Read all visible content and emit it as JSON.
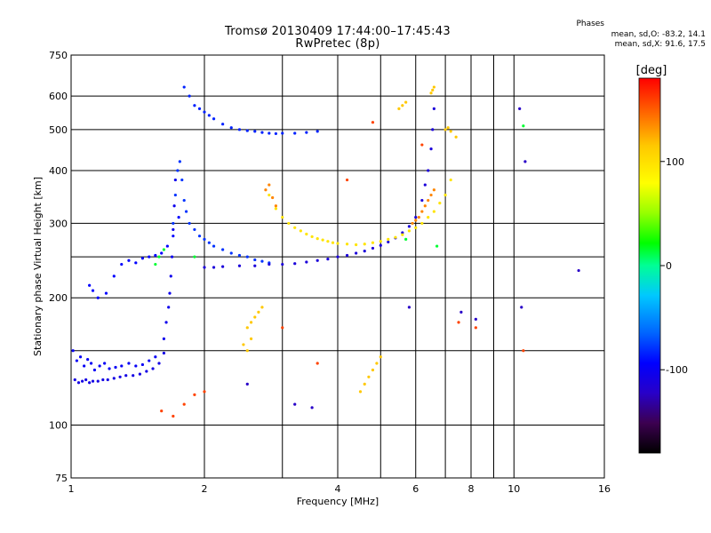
{
  "header": {
    "title_line1": "Tromsø 20130409 17:44:00–17:45:43",
    "title_line2": "RwPretec (8p)",
    "stats_title": "Phases",
    "stats_line1": "mean, sd,O: -83.2, 14.1",
    "stats_line2": "mean, sd,X:  91.6, 17.5"
  },
  "chart_data": {
    "type": "scatter",
    "title": "Tromsø 20130409 17:44:00–17:45:43",
    "subtitle": "RwPretec (8p)",
    "xlabel": "Frequency [MHz]",
    "ylabel": "Stationary phase Virtual Height [km]",
    "x_scale": "log",
    "y_scale": "log",
    "xlim": [
      1,
      16
    ],
    "ylim": [
      75,
      750
    ],
    "x_ticks": [
      1,
      2,
      4,
      6,
      8,
      10,
      16
    ],
    "x_tick_labels": [
      "1",
      "2",
      "4",
      "6",
      "8",
      "10",
      "16"
    ],
    "x_minor_ticks": [
      3,
      5,
      7,
      9
    ],
    "y_ticks": [
      75,
      100,
      200,
      300,
      400,
      500,
      600,
      750
    ],
    "y_tick_labels": [
      "75",
      "100",
      "200",
      "300",
      "400",
      "500",
      "600",
      "750"
    ],
    "y_minor_ticks": [
      150,
      250
    ],
    "grid": true,
    "colorbar": {
      "label": "[deg]",
      "range": [
        -180,
        180
      ],
      "ticks": [
        100,
        0,
        -100
      ],
      "tick_labels": [
        "100",
        "0",
        "-100"
      ],
      "colors": [
        "#000000",
        "#3c0050",
        "#2800c8",
        "#0000ff",
        "#0064ff",
        "#00c8ff",
        "#00ff96",
        "#00ff00",
        "#96ff00",
        "#ffff00",
        "#ffc800",
        "#ff6400",
        "#ff0000"
      ]
    },
    "series": [
      {
        "phase_deg": -105,
        "x": [
          1.02,
          1.04,
          1.06,
          1.08,
          1.1,
          1.12,
          1.15,
          1.18,
          1.21,
          1.25,
          1.29,
          1.33,
          1.38,
          1.43,
          1.48,
          1.53,
          1.58,
          1.62
        ],
        "y": [
          128,
          126,
          127,
          128,
          126,
          127,
          127,
          128,
          128,
          129,
          130,
          131,
          131,
          132,
          134,
          136,
          140,
          148
        ]
      },
      {
        "phase_deg": -95,
        "x": [
          1.01,
          1.03,
          1.05,
          1.07,
          1.09,
          1.11,
          1.13,
          1.16,
          1.19,
          1.22,
          1.26,
          1.3,
          1.35,
          1.4,
          1.45,
          1.5,
          1.55
        ],
        "y": [
          150,
          142,
          145,
          138,
          143,
          140,
          135,
          138,
          140,
          136,
          137,
          138,
          140,
          138,
          139,
          142,
          145
        ]
      },
      {
        "phase_deg": -100,
        "x": [
          1.62,
          1.64,
          1.66,
          1.67,
          1.68,
          1.69,
          1.7,
          1.71,
          1.72
        ],
        "y": [
          160,
          175,
          190,
          205,
          225,
          250,
          290,
          330,
          380
        ]
      },
      {
        "phase_deg": -75,
        "x": [
          1.7,
          1.72,
          1.74,
          1.76,
          1.78,
          1.8,
          1.82,
          1.85,
          1.9,
          1.95,
          2.0,
          2.05,
          2.1,
          2.2,
          2.3,
          2.4,
          2.5,
          2.6,
          2.7,
          2.8
        ],
        "y": [
          300,
          350,
          400,
          420,
          380,
          340,
          320,
          300,
          290,
          280,
          275,
          270,
          265,
          260,
          255,
          252,
          250,
          246,
          244,
          242
        ]
      },
      {
        "phase_deg": -90,
        "x": [
          1.1,
          1.12,
          1.15,
          1.2,
          1.25,
          1.3,
          1.35,
          1.4,
          1.45,
          1.5,
          1.55,
          1.6,
          1.65,
          1.7,
          1.75
        ],
        "y": [
          214,
          208,
          200,
          205,
          225,
          240,
          245,
          242,
          248,
          250,
          252,
          255,
          265,
          280,
          310
        ]
      },
      {
        "phase_deg": -110,
        "x": [
          2.0,
          2.1,
          2.2,
          2.4,
          2.6,
          2.8,
          3.0,
          3.2,
          3.4,
          3.6,
          3.8,
          4.0,
          4.2,
          4.4,
          4.6,
          4.8,
          5.0,
          5.2,
          5.4,
          5.6,
          5.8,
          6.0,
          6.2,
          6.3,
          6.4,
          6.5,
          6.55,
          6.6
        ],
        "y": [
          236,
          236,
          237,
          238,
          238,
          240,
          240,
          241,
          243,
          245,
          247,
          250,
          252,
          255,
          258,
          262,
          266,
          271,
          277,
          285,
          295,
          310,
          340,
          370,
          400,
          450,
          500,
          560
        ]
      },
      {
        "phase_deg": -80,
        "x": [
          1.8,
          1.85,
          1.9,
          1.95,
          2.0,
          2.05,
          2.1,
          2.2,
          2.3,
          2.4,
          2.5,
          2.6,
          2.7,
          2.8,
          2.9,
          3.0,
          3.2,
          3.4,
          3.6
        ],
        "y": [
          630,
          600,
          570,
          560,
          550,
          540,
          530,
          515,
          505,
          500,
          497,
          495,
          492,
          490,
          489,
          490,
          490,
          492,
          495
        ]
      },
      {
        "phase_deg": 105,
        "x": [
          2.8,
          2.9,
          3.0,
          3.1,
          3.2,
          3.3,
          3.4,
          3.5,
          3.6,
          3.7,
          3.8,
          3.9,
          4.0,
          4.2,
          4.4,
          4.6,
          4.8,
          5.0,
          5.2,
          5.4,
          5.6,
          5.8,
          6.0,
          6.2,
          6.4,
          6.6,
          6.8,
          7.0,
          7.2
        ],
        "y": [
          350,
          325,
          310,
          300,
          293,
          288,
          283,
          279,
          276,
          274,
          272,
          270,
          269,
          268,
          267,
          268,
          270,
          272,
          275,
          278,
          282,
          288,
          293,
          300,
          310,
          320,
          335,
          350,
          380
        ]
      },
      {
        "phase_deg": 140,
        "x": [
          2.75,
          2.8,
          2.85,
          2.9,
          5.9,
          6.0,
          6.1,
          6.2,
          6.3,
          6.4,
          6.5,
          6.6
        ],
        "y": [
          360,
          370,
          345,
          330,
          300,
          305,
          310,
          320,
          330,
          340,
          350,
          360
        ]
      },
      {
        "phase_deg": 120,
        "x": [
          2.5,
          2.55,
          2.6,
          2.65,
          2.7,
          2.45,
          2.5,
          2.55,
          4.5,
          4.6,
          4.7,
          4.8,
          4.9,
          5.0,
          5.5,
          5.6,
          5.7,
          6.5,
          6.55,
          6.6,
          7.0,
          7.1,
          7.2,
          7.4
        ],
        "y": [
          170,
          175,
          180,
          185,
          190,
          155,
          150,
          160,
          120,
          125,
          130,
          135,
          140,
          145,
          560,
          570,
          580,
          610,
          620,
          630,
          500,
          505,
          495,
          480
        ]
      },
      {
        "phase_deg": 160,
        "x": [
          1.6,
          1.7,
          1.8,
          1.9,
          2.0,
          3.0,
          3.6,
          4.2,
          4.8,
          6.2,
          7.5,
          8.2,
          10.5
        ],
        "y": [
          108,
          105,
          112,
          118,
          120,
          170,
          140,
          380,
          520,
          460,
          175,
          170,
          150
        ]
      },
      {
        "phase_deg": -120,
        "x": [
          2.5,
          3.2,
          3.5,
          5.8,
          7.6,
          8.2,
          10.3,
          10.6,
          14.0,
          10.4
        ],
        "y": [
          125,
          112,
          110,
          190,
          185,
          178,
          560,
          420,
          232,
          190
        ]
      },
      {
        "phase_deg": 20,
        "x": [
          1.55,
          1.58,
          1.62,
          1.9,
          10.5,
          5.7,
          6.7
        ],
        "y": [
          240,
          250,
          260,
          250,
          510,
          275,
          265
        ]
      }
    ]
  }
}
